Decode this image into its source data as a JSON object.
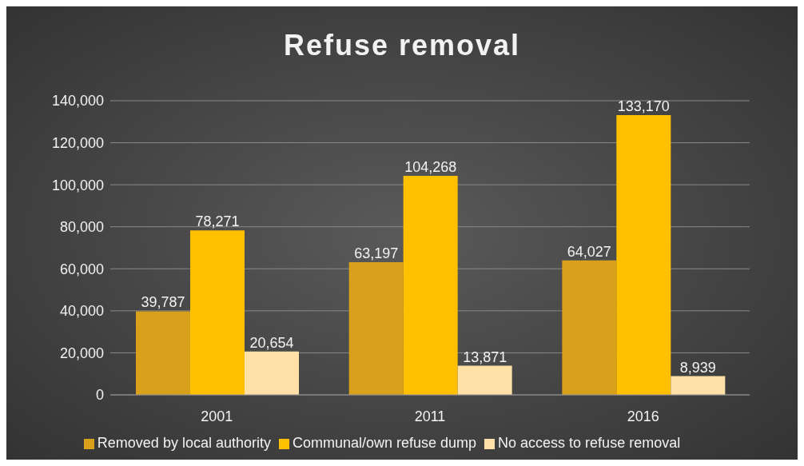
{
  "chart_data": {
    "type": "bar",
    "title": "Refuse removal",
    "categories": [
      "2001",
      "2011",
      "2016"
    ],
    "series": [
      {
        "name": "Removed by local authority",
        "color": "#d9a01c",
        "values": [
          39787,
          63197,
          64027
        ],
        "value_labels": [
          "39,787",
          "63,197",
          "64,027"
        ]
      },
      {
        "name": "Communal/own refuse dump",
        "color": "#ffc000",
        "values": [
          78271,
          104268,
          133170
        ],
        "value_labels": [
          "78,271",
          "104,268",
          "133,170"
        ]
      },
      {
        "name": "No access to refuse removal",
        "color": "#ffe0a6",
        "values": [
          20654,
          13871,
          8939
        ],
        "value_labels": [
          "20,654",
          "13,871",
          "8,939"
        ]
      }
    ],
    "ylim": [
      0,
      140000
    ],
    "yticks": [
      0,
      {
        "value": 20000,
        "label": "20,000"
      },
      {
        "value": 40000,
        "label": "40,000"
      },
      {
        "value": 60000,
        "label": "60,000"
      },
      {
        "value": 80000,
        "label": "80,000"
      },
      {
        "value": 100000,
        "label": "100,000"
      },
      {
        "value": 120000,
        "label": "120,000"
      },
      {
        "value": 140000,
        "label": "140,000"
      }
    ],
    "grid": "y",
    "legend": "bottom"
  }
}
